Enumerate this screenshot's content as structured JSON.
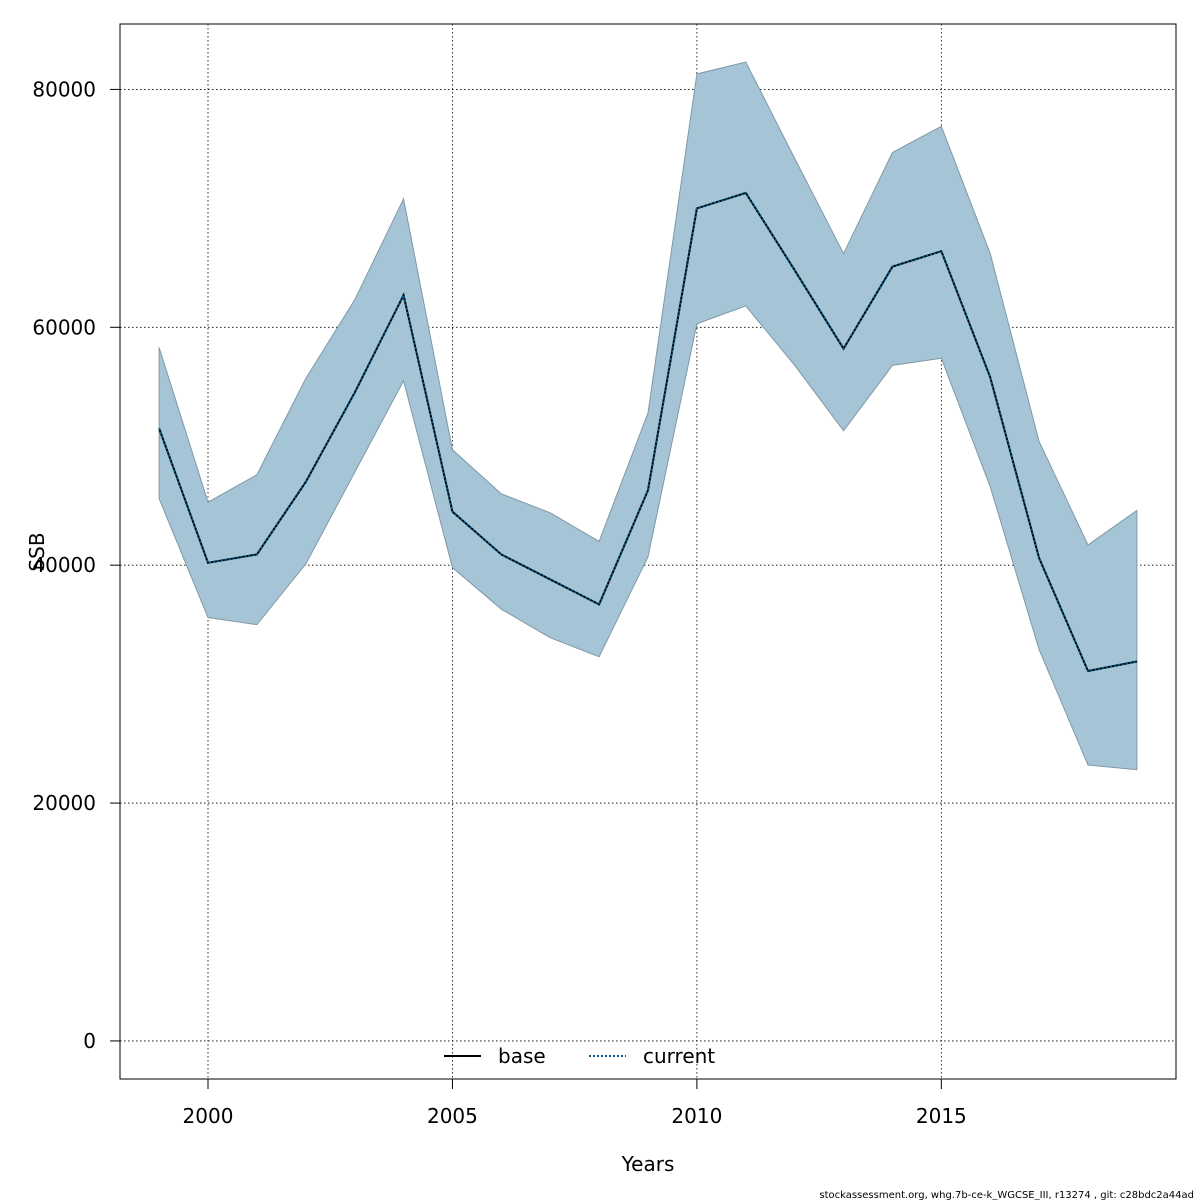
{
  "chart_data": {
    "type": "line",
    "xlabel": "Years",
    "ylabel": "SSB",
    "xlim": [
      1998.2,
      2019.8
    ],
    "ylim": [
      -3200,
      85500
    ],
    "x_ticks": [
      2000,
      2005,
      2010,
      2015
    ],
    "y_ticks": [
      0,
      20000,
      40000,
      60000,
      80000
    ],
    "grid": true,
    "legend_position": "bottom-center",
    "x": [
      1999,
      2000,
      2001,
      2002,
      2003,
      2004,
      2005,
      2006,
      2007,
      2008,
      2009,
      2010,
      2011,
      2012,
      2013,
      2014,
      2015,
      2016,
      2017,
      2018,
      2019
    ],
    "series": [
      {
        "name": "base",
        "color": "#000000",
        "style": "solid",
        "values": [
          51500,
          40200,
          40900,
          47000,
          54500,
          62700,
          44500,
          40900,
          38800,
          36700,
          46300,
          70000,
          71300,
          64800,
          58200,
          65100,
          66400,
          55800,
          40600,
          31100,
          31900
        ]
      },
      {
        "name": "current",
        "color": "#005a8c",
        "style": "dotted",
        "values": [
          51500,
          40200,
          40900,
          47000,
          54500,
          62700,
          44500,
          40900,
          38800,
          36700,
          46300,
          70000,
          71300,
          64800,
          58200,
          65100,
          66400,
          55800,
          40600,
          31100,
          31900
        ]
      }
    ],
    "confidence_band": {
      "color": "#a5c4d5",
      "edge_color": "#7f99a8",
      "upper": [
        58300,
        45300,
        47600,
        55700,
        62300,
        70800,
        49700,
        46000,
        44400,
        42000,
        52800,
        81300,
        82300,
        74200,
        66200,
        74700,
        76900,
        66200,
        50400,
        41700,
        44600
      ],
      "lower": [
        45600,
        35600,
        35000,
        40100,
        47800,
        55500,
        39800,
        36300,
        33900,
        32300,
        40700,
        60300,
        61800,
        56800,
        51300,
        56800,
        57400,
        46600,
        32900,
        23200,
        22800
      ]
    }
  },
  "legend": {
    "base_label": "base",
    "current_label": "current"
  },
  "footer": {
    "text": "stockassessment.org, whg.7b-ce-k_WGCSE_III, r13274 , git: c28bdc2a44ad"
  }
}
